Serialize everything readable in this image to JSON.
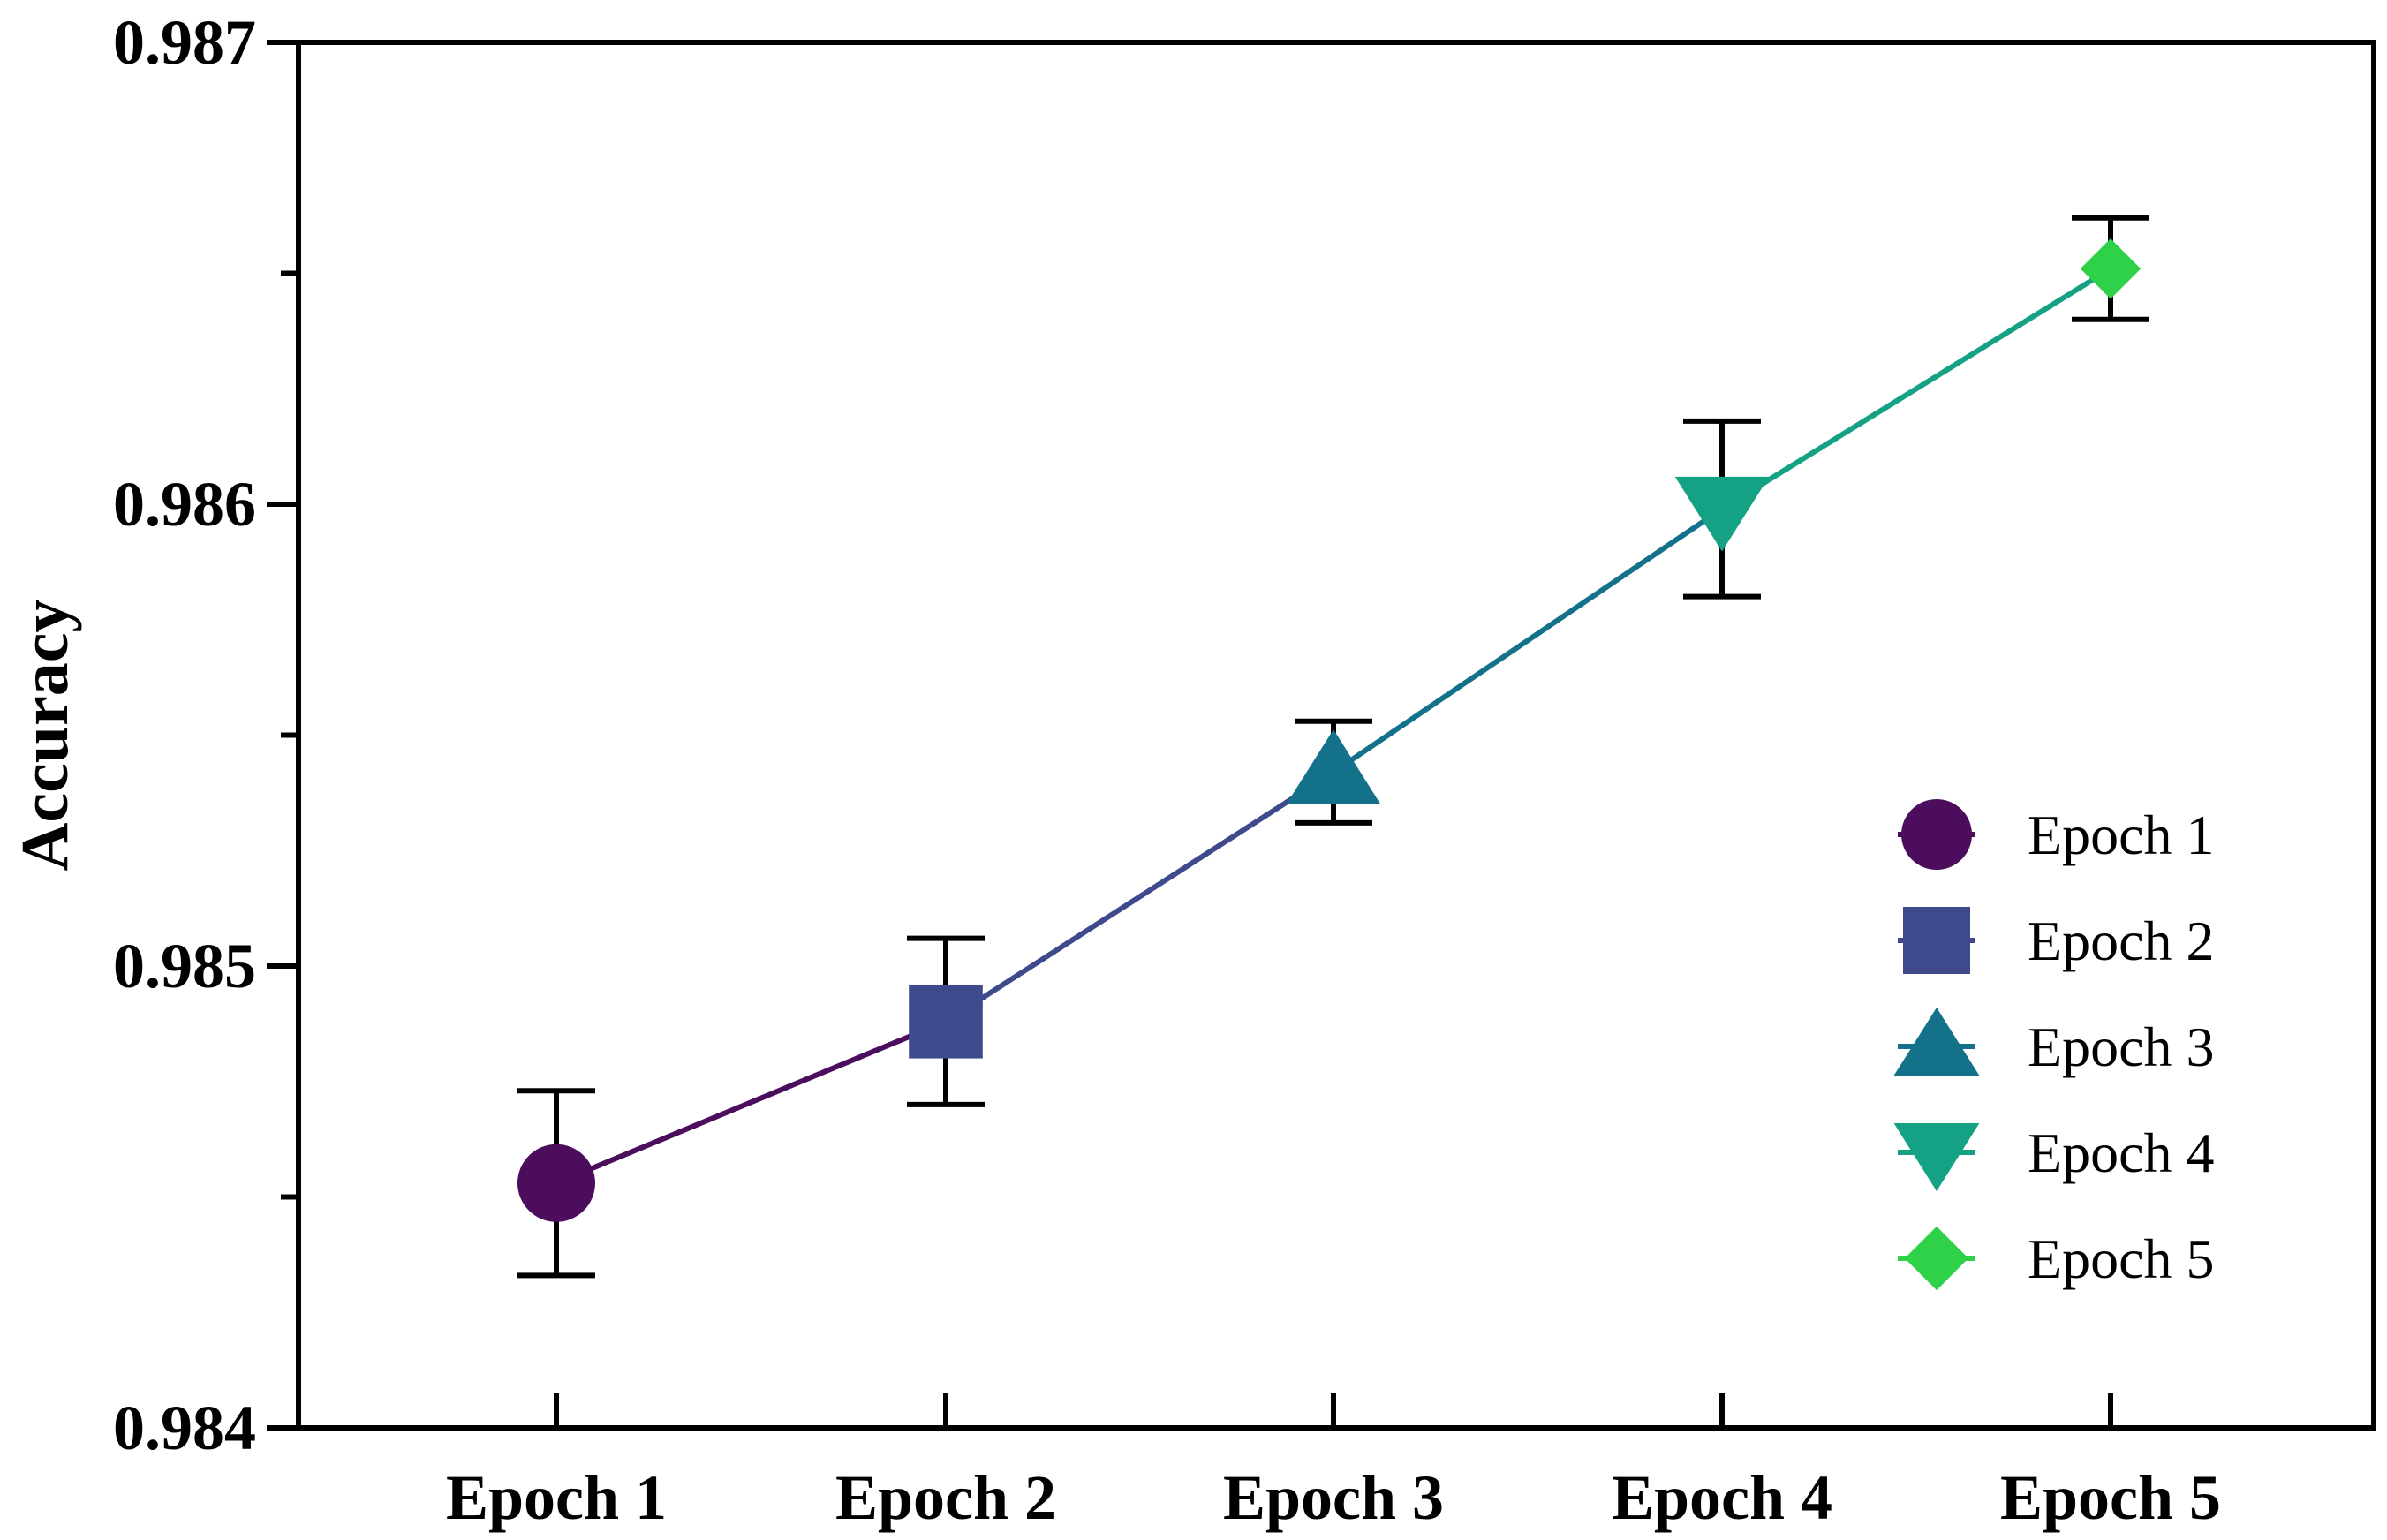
{
  "chart_data": {
    "type": "line",
    "title": "",
    "xlabel": "",
    "ylabel": "Accuracy",
    "categories": [
      "Epoch 1",
      "Epoch 2",
      "Epoch 3",
      "Epoch 4",
      "Epoch 5"
    ],
    "ylim": [
      0.984,
      0.987
    ],
    "yticks_major": [
      0.984,
      0.985,
      0.986,
      0.987
    ],
    "ytick_labels": [
      "0.984",
      "0.985",
      "0.986",
      "0.987"
    ],
    "yticks_minor": [
      0.9845,
      0.9855,
      0.9865
    ],
    "grid": false,
    "legend_position": "bottom-right",
    "series": [
      {
        "name": "Epoch 1",
        "value": 0.98453,
        "error": 0.0002,
        "marker": "circle",
        "color": "#4b0d5c"
      },
      {
        "name": "Epoch 2",
        "value": 0.98488,
        "error": 0.00018,
        "marker": "square",
        "color": "#3e4a8c"
      },
      {
        "name": "Epoch 3",
        "value": 0.98542,
        "error": 0.00011,
        "marker": "triangle-up",
        "color": "#13728a"
      },
      {
        "name": "Epoch 4",
        "value": 0.98599,
        "error": 0.00019,
        "marker": "triangle-down",
        "color": "#14a184"
      },
      {
        "name": "Epoch 5",
        "value": 0.98651,
        "error": 0.00011,
        "marker": "diamond",
        "color": "#2ed148"
      }
    ],
    "line_segments_colors": [
      "#4b0d5c",
      "#3e4a8c",
      "#13728a",
      "#14a184"
    ],
    "error_bar_color": "#000000"
  }
}
